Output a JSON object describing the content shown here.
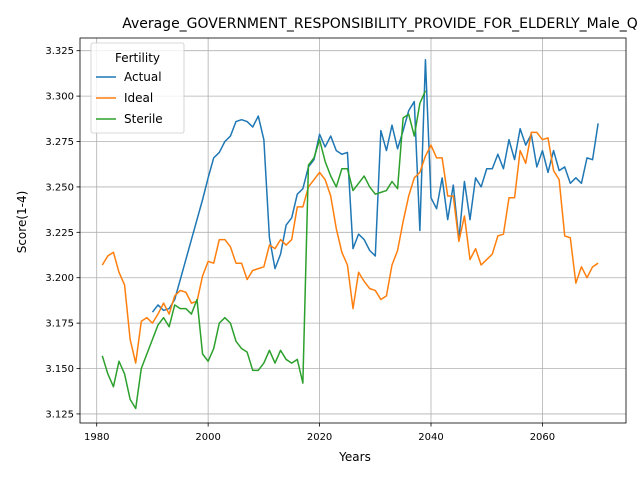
{
  "chart_data": {
    "type": "line",
    "title": "Average_GOVERNMENT_RESPONSIBILITY_PROVIDE_FOR_ELDERLY_Male_Q",
    "xlabel": "Years",
    "ylabel": "Score(1-4)",
    "xlim": [
      1977,
      2075
    ],
    "ylim": [
      3.12,
      3.332
    ],
    "xticks": [
      1980,
      2000,
      2020,
      2040,
      2060
    ],
    "yticks": [
      3.125,
      3.15,
      3.175,
      3.2,
      3.225,
      3.25,
      3.275,
      3.3,
      3.325
    ],
    "ytick_labels": [
      "3.125",
      "3.150",
      "3.175",
      "3.200",
      "3.225",
      "3.250",
      "3.275",
      "3.300",
      "3.325"
    ],
    "grid": true,
    "legend": {
      "title": "Fertility",
      "position": "upper-left"
    },
    "series": [
      {
        "name": "Actual",
        "color": "#1f77b4",
        "x": [
          1990,
          1991,
          1992,
          1993,
          1994,
          1995,
          1996,
          1997,
          1998,
          1999,
          2000,
          2001,
          2002,
          2003,
          2004,
          2005,
          2006,
          2007,
          2008,
          2009,
          2010,
          2011,
          2012,
          2013,
          2014,
          2015,
          2016,
          2017,
          2018,
          2019,
          2020,
          2021,
          2022,
          2023,
          2024,
          2025,
          2026,
          2027,
          2028,
          2029,
          2030,
          2031,
          2032,
          2033,
          2034,
          2035,
          2036,
          2037,
          2038,
          2039,
          2040,
          2041,
          2042,
          2043,
          2044,
          2045,
          2046,
          2047,
          2048,
          2049,
          2050,
          2051,
          2052,
          2053,
          2054,
          2055,
          2056,
          2057,
          2058,
          2059,
          2060,
          2061,
          2062,
          2063,
          2064,
          2065,
          2066,
          2067,
          2068,
          2069,
          2070
        ],
        "y": [
          3.181,
          3.185,
          3.182,
          3.183,
          3.188,
          3.199,
          3.21,
          3.221,
          3.232,
          3.243,
          3.255,
          3.266,
          3.269,
          3.275,
          3.278,
          3.286,
          3.287,
          3.286,
          3.283,
          3.289,
          3.276,
          3.222,
          3.205,
          3.213,
          3.229,
          3.233,
          3.246,
          3.249,
          3.261,
          3.265,
          3.279,
          3.272,
          3.278,
          3.27,
          3.268,
          3.269,
          3.216,
          3.224,
          3.221,
          3.215,
          3.212,
          3.281,
          3.27,
          3.284,
          3.271,
          3.281,
          3.292,
          3.297,
          3.226,
          3.32,
          3.244,
          3.238,
          3.255,
          3.232,
          3.251,
          3.221,
          3.253,
          3.232,
          3.255,
          3.25,
          3.26,
          3.26,
          3.268,
          3.26,
          3.276,
          3.265,
          3.282,
          3.273,
          3.279,
          3.261,
          3.27,
          3.258,
          3.27,
          3.259,
          3.261,
          3.252,
          3.255,
          3.252,
          3.266,
          3.265,
          3.285
        ]
      },
      {
        "name": "Ideal",
        "color": "#ff7f0e",
        "x": [
          1981,
          1982,
          1983,
          1984,
          1985,
          1986,
          1987,
          1988,
          1989,
          1990,
          1991,
          1992,
          1993,
          1994,
          1995,
          1996,
          1997,
          1998,
          1999,
          2000,
          2001,
          2002,
          2003,
          2004,
          2005,
          2006,
          2007,
          2008,
          2009,
          2010,
          2011,
          2012,
          2013,
          2014,
          2015,
          2016,
          2017,
          2018,
          2019,
          2020,
          2021,
          2022,
          2023,
          2024,
          2025,
          2026,
          2027,
          2028,
          2029,
          2030,
          2031,
          2032,
          2033,
          2034,
          2035,
          2036,
          2037,
          2038,
          2039,
          2040,
          2041,
          2042,
          2043,
          2044,
          2045,
          2046,
          2047,
          2048,
          2049,
          2050,
          2051,
          2052,
          2053,
          2054,
          2055,
          2056,
          2057,
          2058,
          2059,
          2060,
          2061,
          2062,
          2063,
          2064,
          2065,
          2066,
          2067,
          2068,
          2069,
          2070
        ],
        "y": [
          3.207,
          3.212,
          3.214,
          3.203,
          3.196,
          3.166,
          3.153,
          3.176,
          3.178,
          3.175,
          3.18,
          3.186,
          3.18,
          3.19,
          3.193,
          3.192,
          3.186,
          3.187,
          3.201,
          3.209,
          3.208,
          3.221,
          3.221,
          3.217,
          3.208,
          3.208,
          3.199,
          3.204,
          3.205,
          3.206,
          3.218,
          3.216,
          3.221,
          3.218,
          3.221,
          3.239,
          3.239,
          3.25,
          3.254,
          3.258,
          3.254,
          3.245,
          3.227,
          3.214,
          3.207,
          3.183,
          3.203,
          3.198,
          3.194,
          3.193,
          3.188,
          3.19,
          3.207,
          3.215,
          3.231,
          3.245,
          3.255,
          3.258,
          3.267,
          3.273,
          3.266,
          3.266,
          3.245,
          3.245,
          3.22,
          3.234,
          3.21,
          3.216,
          3.207,
          3.21,
          3.213,
          3.223,
          3.224,
          3.244,
          3.244,
          3.27,
          3.263,
          3.28,
          3.28,
          3.276,
          3.277,
          3.259,
          3.254,
          3.223,
          3.222,
          3.197,
          3.206,
          3.2,
          3.206,
          3.208
        ]
      },
      {
        "name": "Sterile",
        "color": "#2ca02c",
        "x": [
          1981,
          1982,
          1983,
          1984,
          1985,
          1986,
          1987,
          1988,
          1989,
          1990,
          1991,
          1992,
          1993,
          1994,
          1995,
          1996,
          1997,
          1998,
          1999,
          2000,
          2001,
          2002,
          2003,
          2004,
          2005,
          2006,
          2007,
          2008,
          2009,
          2010,
          2011,
          2012,
          2013,
          2014,
          2015,
          2016,
          2017,
          2018,
          2019,
          2020,
          2021,
          2022,
          2023,
          2024,
          2025,
          2026,
          2027,
          2028,
          2029,
          2030,
          2031,
          2032,
          2033,
          2034,
          2035,
          2036,
          2037,
          2038,
          2039
        ],
        "y": [
          3.157,
          3.147,
          3.14,
          3.154,
          3.147,
          3.133,
          3.128,
          3.15,
          3.158,
          3.166,
          3.174,
          3.178,
          3.173,
          3.185,
          3.183,
          3.183,
          3.18,
          3.188,
          3.158,
          3.154,
          3.161,
          3.175,
          3.178,
          3.175,
          3.165,
          3.161,
          3.159,
          3.149,
          3.149,
          3.153,
          3.16,
          3.153,
          3.16,
          3.155,
          3.153,
          3.155,
          3.142,
          3.262,
          3.266,
          3.276,
          3.264,
          3.256,
          3.25,
          3.26,
          3.26,
          3.248,
          3.252,
          3.256,
          3.25,
          3.246,
          3.247,
          3.248,
          3.253,
          3.249,
          3.288,
          3.29,
          3.278,
          3.296,
          3.303
        ]
      }
    ]
  }
}
